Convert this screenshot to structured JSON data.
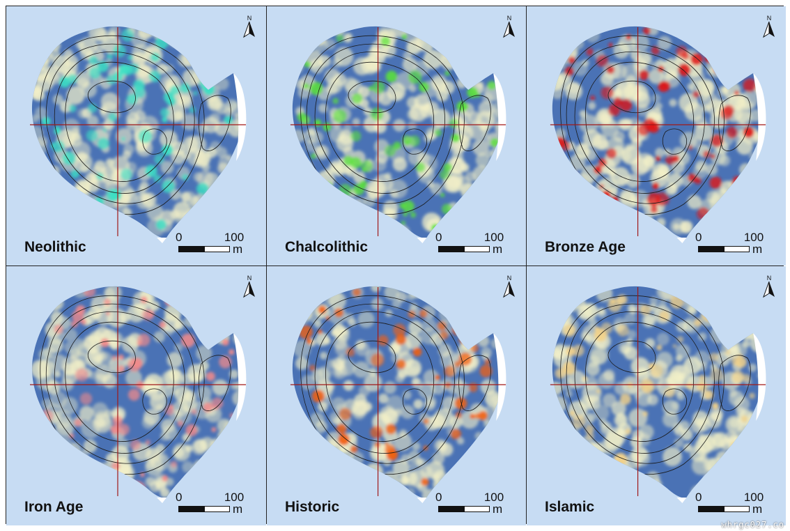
{
  "panels": [
    {
      "label": "Neolithic",
      "accent": "#3de0c4"
    },
    {
      "label": "Chalcolithic",
      "accent": "#5be23a"
    },
    {
      "label": "Bronze Age",
      "accent": "#e01515"
    },
    {
      "label": "Iron Age",
      "accent": "#f28a8a"
    },
    {
      "label": "Historic",
      "accent": "#f2600f"
    },
    {
      "label": "Islamic",
      "accent": "#f2d28a"
    }
  ],
  "scale": {
    "zero": "0",
    "max": "100",
    "unit": "m"
  },
  "north_label": "N",
  "colors": {
    "background": "#c7dcf3",
    "site": "#4a72b5",
    "grid_line": "#a01818",
    "contour": "#1a1a1a",
    "low": "#f4f1c8"
  },
  "watermark": "whrgc027.co"
}
